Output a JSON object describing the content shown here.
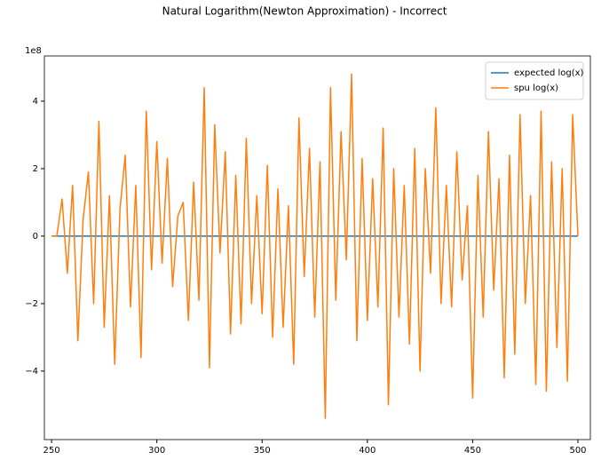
{
  "chart_data": {
    "type": "line",
    "title": "Natural Logarithm(Newton Approximation) - Incorrect",
    "y_offset_label": "1e8",
    "x": [
      250,
      252.5,
      255,
      257.5,
      260,
      262.5,
      265,
      267.5,
      270,
      272.5,
      275,
      277.5,
      280,
      282.5,
      285,
      287.5,
      290,
      292.5,
      295,
      297.5,
      300,
      302.5,
      305,
      307.5,
      310,
      312.5,
      315,
      317.5,
      320,
      322.5,
      325,
      327.5,
      330,
      332.5,
      335,
      337.5,
      340,
      342.5,
      345,
      347.5,
      350,
      352.5,
      355,
      357.5,
      360,
      362.5,
      365,
      367.5,
      370,
      372.5,
      375,
      377.5,
      380,
      382.5,
      385,
      387.5,
      390,
      392.5,
      395,
      397.5,
      400,
      402.5,
      405,
      407.5,
      410,
      412.5,
      415,
      417.5,
      420,
      422.5,
      425,
      427.5,
      430,
      432.5,
      435,
      437.5,
      440,
      442.5,
      445,
      447.5,
      450,
      452.5,
      455,
      457.5,
      460,
      462.5,
      465,
      467.5,
      470,
      472.5,
      475,
      477.5,
      480,
      482.5,
      485,
      487.5,
      490,
      492.5,
      495,
      497.5,
      500
    ],
    "series": [
      {
        "name": "expected log(x)",
        "color": "#1f77b4",
        "values": [
          5.52,
          5.53,
          5.54,
          5.55,
          5.56,
          5.57,
          5.58,
          5.59,
          5.6,
          5.61,
          5.62,
          5.63,
          5.63,
          5.64,
          5.65,
          5.66,
          5.67,
          5.68,
          5.69,
          5.7,
          5.7,
          5.71,
          5.72,
          5.73,
          5.74,
          5.74,
          5.75,
          5.76,
          5.77,
          5.78,
          5.78,
          5.79,
          5.8,
          5.81,
          5.81,
          5.82,
          5.83,
          5.84,
          5.84,
          5.85,
          5.86,
          5.87,
          5.87,
          5.88,
          5.89,
          5.89,
          5.9,
          5.91,
          5.91,
          5.92,
          5.93,
          5.93,
          5.94,
          5.95,
          5.95,
          5.96,
          5.97,
          5.97,
          5.98,
          5.99,
          5.99,
          6.0,
          6.0,
          6.01,
          6.02,
          6.02,
          6.03,
          6.03,
          6.04,
          6.05,
          6.05,
          6.06,
          6.06,
          6.07,
          6.08,
          6.08,
          6.09,
          6.09,
          6.1,
          6.1,
          6.11,
          6.11,
          6.12,
          6.13,
          6.13,
          6.14,
          6.14,
          6.15,
          6.15,
          6.16,
          6.16,
          6.17,
          6.17,
          6.18,
          6.18,
          6.19,
          6.19,
          6.2,
          6.2,
          6.21,
          6.21
        ]
      },
      {
        "name": "spu log(x)",
        "color": "#ff7f0e",
        "values": [
          0,
          0,
          110000000.0,
          -110000000.0,
          150000000.0,
          -310000000.0,
          50000000.0,
          190000000.0,
          -200000000.0,
          340000000.0,
          -270000000.0,
          120000000.0,
          -380000000.0,
          80000000.0,
          240000000.0,
          -210000000.0,
          150000000.0,
          -360000000.0,
          370000000.0,
          -100000000.0,
          280000000.0,
          -80000000.0,
          230000000.0,
          -150000000.0,
          60000000.0,
          100000000.0,
          -250000000.0,
          160000000.0,
          -190000000.0,
          440000000.0,
          -390000000.0,
          330000000.0,
          -50000000.0,
          250000000.0,
          -290000000.0,
          180000000.0,
          -260000000.0,
          290000000.0,
          -200000000.0,
          120000000.0,
          -230000000.0,
          210000000.0,
          -300000000.0,
          140000000.0,
          -270000000.0,
          90000000.0,
          -380000000.0,
          350000000.0,
          -120000000.0,
          260000000.0,
          -240000000.0,
          220000000.0,
          -540000000.0,
          440000000.0,
          -190000000.0,
          310000000.0,
          -70000000.0,
          480000000.0,
          -310000000.0,
          230000000.0,
          -250000000.0,
          170000000.0,
          -210000000.0,
          320000000.0,
          -500000000.0,
          200000000.0,
          -240000000.0,
          150000000.0,
          -320000000.0,
          260000000.0,
          -400000000.0,
          200000000.0,
          -110000000.0,
          380000000.0,
          -200000000.0,
          150000000.0,
          -210000000.0,
          250000000.0,
          -130000000.0,
          90000000.0,
          -480000000.0,
          180000000.0,
          -240000000.0,
          310000000.0,
          -160000000.0,
          170000000.0,
          -420000000.0,
          240000000.0,
          -350000000.0,
          360000000.0,
          -200000000.0,
          120000000.0,
          -440000000.0,
          370000000.0,
          -460000000.0,
          220000000.0,
          -330000000.0,
          200000000.0,
          -430000000.0,
          360000000.0,
          0
        ]
      }
    ],
    "xlim": [
      246.6,
      505.9
    ],
    "xticks": [
      250,
      300,
      350,
      400,
      450,
      500
    ],
    "ylim": [
      -603000000.0,
      534000000.0
    ],
    "yticks": [
      {
        "value": -400000000.0,
        "label": "−4"
      },
      {
        "value": -200000000.0,
        "label": "−2"
      },
      {
        "value": 0,
        "label": "0"
      },
      {
        "value": 200000000.0,
        "label": "2"
      },
      {
        "value": 400000000.0,
        "label": "4"
      }
    ],
    "grid": false,
    "legend": "upper right"
  }
}
